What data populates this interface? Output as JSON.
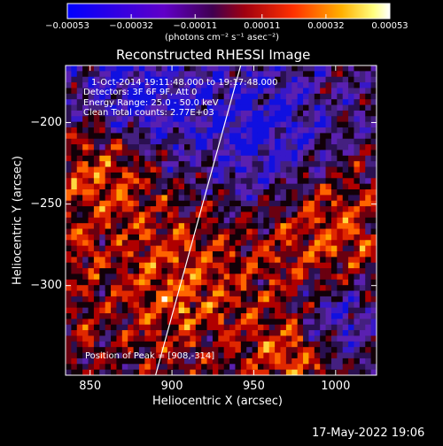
{
  "chart_data": {
    "type": "heatmap",
    "title": "Reconstructed RHESSI Image",
    "xlabel": "Heliocentric X (arcsec)",
    "ylabel": "Heliocentric Y (arcsec)",
    "xlim": [
      835,
      1025
    ],
    "ylim": [
      -355,
      -165
    ],
    "x_ticks": [
      850,
      900,
      950,
      1000
    ],
    "y_ticks": [
      -300,
      -250,
      -200
    ],
    "x_tick_labels": [
      "850",
      "900",
      "950",
      "1000"
    ],
    "y_tick_labels": [
      "−300",
      "−250",
      "−200"
    ],
    "colorbar": {
      "min": -0.00053,
      "max": 0.00053,
      "ticks": [
        -0.00053,
        -0.00032,
        -0.00011,
        0.00011,
        0.00032,
        0.00053
      ],
      "tick_labels": [
        "−0.00053",
        "−0.00032",
        "−0.00011",
        "0.00011",
        "0.00032",
        "0.00053"
      ],
      "unit_label": "(photons cm⁻² s⁻¹ asec⁻²)",
      "colormap": "rainbow-to-white"
    },
    "annotations": [
      "1-Oct-2014 19:11:48.000 to 19:17:48.000",
      "Detectors: 3F 6F 9F, Att 0",
      "Energy Range: 25.0 - 50.0 keV",
      "Clean    Total counts: 2.77E+03"
    ],
    "peak_label": "Position of Peak = [908,-314]",
    "peak_position": [
      908,
      -314
    ],
    "limb_line": [
      [
        890,
        -355
      ],
      [
        942,
        -165
      ]
    ],
    "grid": false
  },
  "footer": {
    "timestamp": "17-May-2022 19:06"
  },
  "colors": {
    "background": "#000000",
    "foreground": "#ffffff",
    "colormap_stops": [
      "#0000ff",
      "#7000a0",
      "#400060",
      "#c00000",
      "#ff5000",
      "#ffd000",
      "#ffffff"
    ]
  }
}
